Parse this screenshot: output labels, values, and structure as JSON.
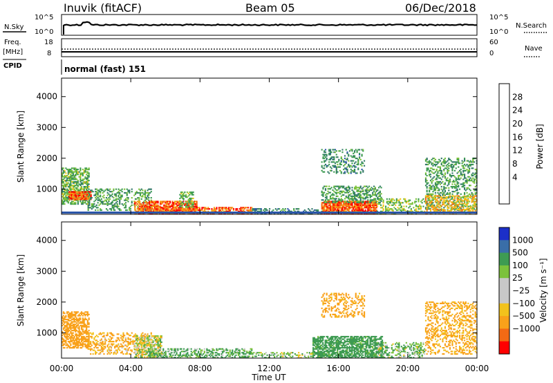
{
  "header": {
    "station": "Inuvik (fitACF)",
    "beam": "Beam 05",
    "date": "06/Dec/2018"
  },
  "top_panels": {
    "nsky_label": "N.Sky",
    "nsky_left_ticks": [
      "10^5",
      "10^0"
    ],
    "nsky_right_ticks": [
      "10^5",
      "10^0"
    ],
    "nsearch_label": "N.Search",
    "freq_label": "Freq.",
    "freq_unit": "[MHz]",
    "freq_ticks": [
      "18",
      "8"
    ],
    "nave_label": "Nave",
    "nave_ticks": [
      "60",
      "0"
    ],
    "cpid_label": "CPID",
    "cpid_value": "normal (fast) 151"
  },
  "colors": {
    "power_scale": [
      "#0000ff",
      "#2a55a8",
      "#347a6a",
      "#3e9b52",
      "#7cc23c",
      "#f2c81c",
      "#f7a21a",
      "#f46a14",
      "#ff0000"
    ],
    "velocity_scale": [
      "#ff0000",
      "#f36a14",
      "#f9a11a",
      "#f2c21c",
      "#c8c8c8",
      "#c8c8c8",
      "#7cc23c",
      "#3e9b52",
      "#3a6ea8",
      "#1c2fc8"
    ]
  },
  "chart_data": [
    {
      "type": "heatmap",
      "name": "power",
      "ylabel": "Slant Range [km]",
      "y_ticks": [
        1000,
        2000,
        3000,
        4000
      ],
      "ylim": [
        180,
        4600
      ],
      "colorbar_label": "Power [dB]",
      "colorbar_ticks": [
        "28",
        "24",
        "20",
        "16",
        "12",
        "8",
        "4"
      ],
      "colorbar_range": [
        0,
        32
      ],
      "regions": [
        {
          "t0": 0.0,
          "t1": 1.6,
          "r0": 500,
          "r1": 1700,
          "level": 16,
          "density": 0.6
        },
        {
          "t0": 0.4,
          "t1": 1.7,
          "r0": 650,
          "r1": 900,
          "level": 30,
          "density": 0.8
        },
        {
          "t0": 1.5,
          "t1": 5.2,
          "r0": 300,
          "r1": 1000,
          "level": 14,
          "density": 0.35
        },
        {
          "t0": 4.2,
          "t1": 7.8,
          "r0": 180,
          "r1": 600,
          "level": 30,
          "density": 0.7
        },
        {
          "t0": 5.0,
          "t1": 11.0,
          "r0": 180,
          "r1": 400,
          "level": 30,
          "density": 0.6
        },
        {
          "t0": 6.8,
          "t1": 7.6,
          "r0": 400,
          "r1": 900,
          "level": 16,
          "density": 0.5
        },
        {
          "t0": 11.0,
          "t1": 15.0,
          "r0": 180,
          "r1": 350,
          "level": 12,
          "density": 0.35
        },
        {
          "t0": 15.0,
          "t1": 18.2,
          "r0": 180,
          "r1": 600,
          "level": 30,
          "density": 0.85
        },
        {
          "t0": 15.0,
          "t1": 18.5,
          "r0": 550,
          "r1": 1100,
          "level": 14,
          "density": 0.45
        },
        {
          "t0": 15.0,
          "t1": 17.5,
          "r0": 1500,
          "r1": 2300,
          "level": 12,
          "density": 0.3
        },
        {
          "t0": 18.2,
          "t1": 21.0,
          "r0": 180,
          "r1": 700,
          "level": 18,
          "density": 0.35
        },
        {
          "t0": 21.0,
          "t1": 24.0,
          "r0": 300,
          "r1": 2000,
          "level": 14,
          "density": 0.35
        },
        {
          "t0": 21.0,
          "t1": 24.0,
          "r0": 200,
          "r1": 800,
          "level": 24,
          "density": 0.4
        }
      ]
    },
    {
      "type": "heatmap",
      "name": "velocity",
      "ylabel": "Slant Range [km]",
      "y_ticks": [
        1000,
        2000,
        3000,
        4000
      ],
      "ylim": [
        180,
        4600
      ],
      "colorbar_label": "Velocity [m s⁻¹]",
      "colorbar_ticks": [
        "1000",
        "500",
        "100",
        "25",
        "−25",
        "−100",
        "−500",
        "−1000"
      ],
      "regions": [
        {
          "t0": 0.0,
          "t1": 1.6,
          "r0": 500,
          "r1": 1700,
          "level": -300,
          "density": 0.6
        },
        {
          "t0": 1.5,
          "t1": 5.2,
          "r0": 300,
          "r1": 1000,
          "level": -120,
          "density": 0.35
        },
        {
          "t0": 4.2,
          "t1": 5.8,
          "r0": 200,
          "r1": 900,
          "level": 0,
          "density": 0.6
        },
        {
          "t0": 5.0,
          "t1": 11.0,
          "r0": 180,
          "r1": 500,
          "level": 120,
          "density": 0.5
        },
        {
          "t0": 11.0,
          "t1": 15.0,
          "r0": 180,
          "r1": 350,
          "level": 60,
          "density": 0.35
        },
        {
          "t0": 14.5,
          "t1": 18.5,
          "r0": 180,
          "r1": 900,
          "level": 200,
          "density": 0.7
        },
        {
          "t0": 15.0,
          "t1": 17.5,
          "r0": 1500,
          "r1": 2300,
          "level": -200,
          "density": 0.3
        },
        {
          "t0": 18.2,
          "t1": 21.0,
          "r0": 180,
          "r1": 700,
          "level": 80,
          "density": 0.35
        },
        {
          "t0": 21.0,
          "t1": 24.0,
          "r0": 300,
          "r1": 2000,
          "level": -150,
          "density": 0.35
        }
      ]
    }
  ],
  "x_axis": {
    "ticks": [
      "00:00",
      "04:00",
      "08:00",
      "12:00",
      "16:00",
      "20:00",
      "00:00"
    ],
    "label": "Time UT"
  }
}
